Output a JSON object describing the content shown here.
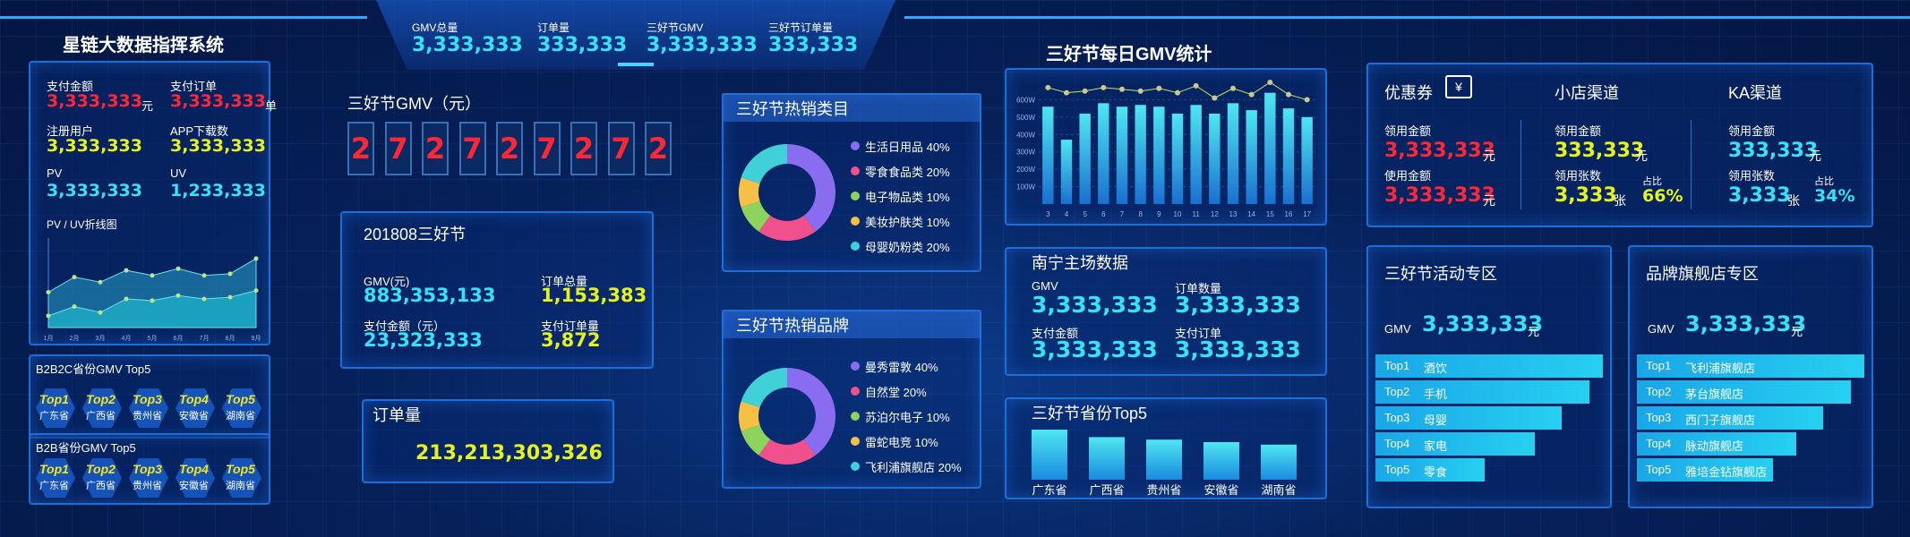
{
  "app": {
    "title": "星链大数据指挥系统"
  },
  "header": {
    "kpis": [
      {
        "label": "GMV总量",
        "value": "3,333,333"
      },
      {
        "label": "订单量",
        "value": "333,333"
      },
      {
        "label": "三好节GMV",
        "value": "3,333,333"
      },
      {
        "label": "三好节订单量",
        "value": "333,333"
      }
    ]
  },
  "left": {
    "stats": [
      {
        "label": "支付金额",
        "value": "3,333,333",
        "unit": "元",
        "color": "#ff2636"
      },
      {
        "label": "支付订单",
        "value": "3,333,333",
        "unit": "单",
        "color": "#ff2636"
      },
      {
        "label": "注册用户",
        "value": "3,333,333",
        "unit": "",
        "color": "#e6f21a"
      },
      {
        "label": "APP下载数",
        "value": "3,333,333",
        "unit": "",
        "color": "#e6f21a"
      },
      {
        "label": "PV",
        "value": "3,333,333",
        "unit": "",
        "color": "#36e2f5"
      },
      {
        "label": "UV",
        "value": "1,233,333",
        "unit": "",
        "color": "#36e2f5"
      }
    ],
    "pvuv_title": "PV / UV折线图",
    "b2b2c_title": "B2B2C省份GMV Top5",
    "b2b_title": "B2B省份GMV Top5",
    "tops": [
      {
        "rank": "Top1",
        "province": "广东省"
      },
      {
        "rank": "Top2",
        "province": "广西省"
      },
      {
        "rank": "Top3",
        "province": "贵州省"
      },
      {
        "rank": "Top4",
        "province": "安徽省"
      },
      {
        "rank": "Top5",
        "province": "湖南省"
      }
    ]
  },
  "gmv_digits": {
    "title": "三好节GMV（元）",
    "digits": [
      "2",
      "7",
      "2",
      "7",
      "2",
      "7",
      "2",
      "7",
      "2"
    ]
  },
  "festival": {
    "title": "201808三好节",
    "gmv_label": "GMV(元)",
    "gmv_value": "883,353,133",
    "orders_label": "订单总量",
    "orders_value": "1,153,383",
    "pay_label": "支付金额（元）",
    "pay_value": "23,323,333",
    "pay_orders_label": "支付订单量",
    "pay_orders_value": "3,872"
  },
  "order_volume": {
    "title": "订单量",
    "value": "213,213,303,326"
  },
  "hot_categories": {
    "title": "三好节热销类目",
    "items": [
      {
        "name": "生活日用品 40%",
        "color": "#8a6cf0",
        "share": 40
      },
      {
        "name": "零食食品类 20%",
        "color": "#f0508c",
        "share": 20
      },
      {
        "name": "电子物品类 10%",
        "color": "#8ed35c",
        "share": 10
      },
      {
        "name": "美妆护肤类 10%",
        "color": "#f6c044",
        "share": 10
      },
      {
        "name": "母婴奶粉类 20%",
        "color": "#3fd0d8",
        "share": 20
      }
    ]
  },
  "hot_brands": {
    "title": "三好节热销品牌",
    "items": [
      {
        "name": "曼秀雷敦 40%",
        "color": "#8a6cf0",
        "share": 40
      },
      {
        "name": "自然堂 20%",
        "color": "#f0508c",
        "share": 20
      },
      {
        "name": "苏泊尔电子 10%",
        "color": "#8ed35c",
        "share": 10
      },
      {
        "name": "雷蛇电竞 10%",
        "color": "#f6c044",
        "share": 10
      },
      {
        "name": "飞利浦旗舰店 20%",
        "color": "#3fd0d8",
        "share": 20
      }
    ]
  },
  "daily_gmv": {
    "title": "三好节每日GMV统计"
  },
  "nanning": {
    "title": "南宁主场数据",
    "items": [
      {
        "label": "GMV",
        "value": "3,333,333"
      },
      {
        "label": "订单数量",
        "value": "3,333,333"
      },
      {
        "label": "支付金额",
        "value": "3,333,333"
      },
      {
        "label": "支付订单",
        "value": "3,333,333"
      }
    ]
  },
  "province_top5": {
    "title": "三好节省份Top5"
  },
  "coupons": {
    "title": "优惠券",
    "coupon_icon": "¥",
    "used_amount_label": "领用金额",
    "used_amount_value": "3,333,333",
    "unit_yuan": "元",
    "use_amount_label": "使用金额",
    "use_amount_value": "3,333,333"
  },
  "shop_channel": {
    "title": "小店渠道",
    "amount_label": "领用金额",
    "amount_value": "333,333",
    "unit_yuan": "元",
    "count_label": "领用张数",
    "count_value": "3,333",
    "unit_zhang": "张",
    "ratio_label": "占比",
    "ratio_value": "66%"
  },
  "ka_channel": {
    "title": "KA渠道",
    "amount_label": "领用金额",
    "amount_value": "333,333",
    "unit_yuan": "元",
    "count_label": "领用张数",
    "count_value": "3,333",
    "unit_zhang": "张",
    "ratio_label": "占比",
    "ratio_value": "34%"
  },
  "activity_zone": {
    "title": "三好节活动专区",
    "gmv_label": "GMV",
    "gmv_value": "3,333,333",
    "unit": "元",
    "ranks": [
      {
        "rank": "Top1",
        "name": "酒饮",
        "level": 1.0
      },
      {
        "rank": "Top2",
        "name": "手机",
        "level": 0.94
      },
      {
        "rank": "Top3",
        "name": "母婴",
        "level": 0.82
      },
      {
        "rank": "Top4",
        "name": "家电",
        "level": 0.7
      },
      {
        "rank": "Top5",
        "name": "零食",
        "level": 0.48
      }
    ]
  },
  "brand_zone": {
    "title": "品牌旗舰店专区",
    "gmv_label": "GMV",
    "gmv_value": "3,333,333",
    "unit": "元",
    "ranks": [
      {
        "rank": "Top1",
        "name": "飞利浦旗舰店",
        "level": 1.0
      },
      {
        "rank": "Top2",
        "name": "茅台旗舰店",
        "level": 0.94
      },
      {
        "rank": "Top3",
        "name": "西门子旗舰店",
        "level": 0.82
      },
      {
        "rank": "Top4",
        "name": "脉动旗舰店",
        "level": 0.7
      },
      {
        "rank": "Top5",
        "name": "雅培金钻旗舰店",
        "level": 0.6
      }
    ]
  },
  "chart_data": [
    {
      "type": "area",
      "title": "PV / UV折线图",
      "x": [
        "1月",
        "2月",
        "3月",
        "4月",
        "5月",
        "6月",
        "7月",
        "8月",
        "9月"
      ],
      "series": [
        {
          "values": [
            42,
            60,
            54,
            68,
            62,
            70,
            62,
            64,
            82
          ]
        },
        {
          "values": [
            14,
            25,
            18,
            34,
            32,
            38,
            34,
            36,
            44
          ]
        }
      ],
      "ylim": [
        0,
        100
      ]
    },
    {
      "type": "bar",
      "title": "三好节每日GMV统计",
      "categories": [
        "3",
        "4",
        "5",
        "6",
        "7",
        "8",
        "9",
        "10",
        "11",
        "12",
        "13",
        "14",
        "15",
        "16",
        "17"
      ],
      "values": [
        560,
        370,
        520,
        580,
        560,
        570,
        560,
        520,
        570,
        520,
        580,
        540,
        640,
        550,
        500
      ],
      "line": [
        670,
        640,
        650,
        670,
        660,
        650,
        665,
        640,
        680,
        610,
        665,
        630,
        700,
        630,
        600
      ],
      "yticks": [
        "100W",
        "200W",
        "300W",
        "400W",
        "500W",
        "600W"
      ],
      "ylim": [
        0,
        700
      ]
    },
    {
      "type": "bar",
      "title": "三好节省份Top5",
      "categories": [
        "广东省",
        "广西省",
        "贵州省",
        "安徽省",
        "湖南省"
      ],
      "values": [
        100,
        85,
        80,
        75,
        70
      ]
    }
  ]
}
